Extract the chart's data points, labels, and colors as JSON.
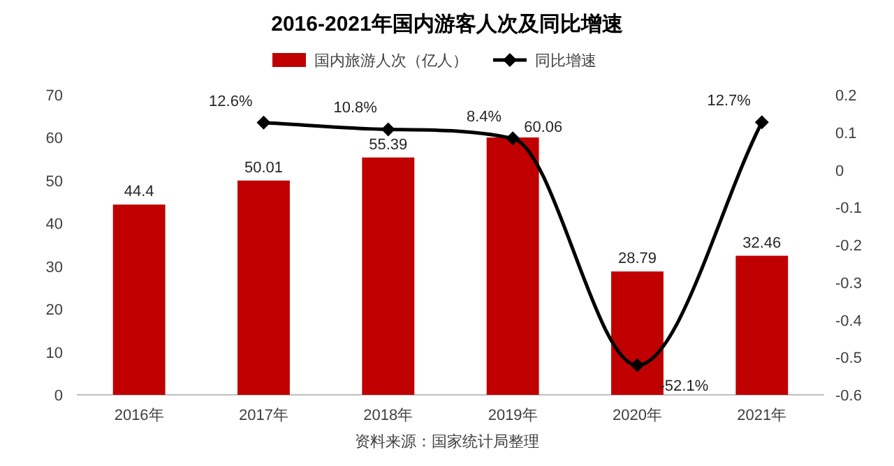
{
  "chart_data": {
    "type": "bar",
    "title": "2016-2021年国内游客人次及同比增速",
    "categories": [
      "2016年",
      "2017年",
      "2018年",
      "2019年",
      "2020年",
      "2021年"
    ],
    "series": [
      {
        "name": "国内旅游人次（亿人）",
        "color": "#c00000",
        "values": [
          44.4,
          50.01,
          55.39,
          60.06,
          28.79,
          32.46
        ]
      },
      {
        "name": "同比增速",
        "type": "line",
        "axis": "y2",
        "color": "#000000",
        "marker": "diamond",
        "line_style": "solid",
        "values": [
          null,
          0.126,
          0.108,
          0.084,
          -0.521,
          0.127
        ],
        "value_labels": [
          null,
          "12.6%",
          "10.8%",
          "8.4%",
          "-52.1%",
          "12.7%"
        ]
      }
    ],
    "data_labels": true,
    "ylim": [
      0,
      70
    ],
    "yticks": [
      0,
      10,
      20,
      30,
      40,
      50,
      60,
      70
    ],
    "y2lim": [
      -0.6,
      0.2
    ],
    "y2ticks": [
      -0.6,
      -0.5,
      -0.4,
      -0.3,
      -0.2,
      -0.1,
      0,
      0.1,
      0.2
    ],
    "legend": "top",
    "grid": false,
    "annotations": [
      "资料来源：国家统计局整理"
    ]
  }
}
